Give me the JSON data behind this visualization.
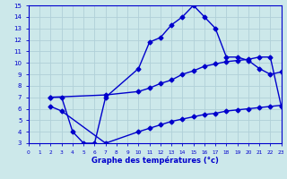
{
  "line1_x": [
    2,
    3,
    4,
    5,
    6,
    7,
    10,
    11,
    12,
    13,
    14,
    15,
    16,
    17,
    18,
    19,
    20,
    21,
    22,
    23
  ],
  "line1_y": [
    7.0,
    7.0,
    4.0,
    3.0,
    3.0,
    7.0,
    9.5,
    11.8,
    12.2,
    13.3,
    14.0,
    15.0,
    14.0,
    13.0,
    10.5,
    10.5,
    10.2,
    9.5,
    9.0,
    9.2
  ],
  "line2_x": [
    2,
    7,
    10,
    11,
    12,
    13,
    14,
    15,
    16,
    17,
    18,
    19,
    20,
    21,
    22,
    23
  ],
  "line2_y": [
    7.0,
    7.2,
    7.5,
    7.8,
    8.2,
    8.5,
    9.0,
    9.3,
    9.7,
    9.9,
    10.1,
    10.2,
    10.3,
    10.5,
    10.5,
    6.2
  ],
  "line3_x": [
    2,
    3,
    7,
    10,
    11,
    12,
    13,
    14,
    15,
    16,
    17,
    18,
    19,
    20,
    21,
    22,
    23
  ],
  "line3_y": [
    6.2,
    5.8,
    3.0,
    4.0,
    4.3,
    4.6,
    4.9,
    5.1,
    5.3,
    5.5,
    5.6,
    5.8,
    5.9,
    6.0,
    6.1,
    6.2,
    6.3
  ],
  "xlabel": "Graphe des températures (°c)",
  "xlim": [
    0,
    23
  ],
  "ylim": [
    3,
    15
  ],
  "xticks": [
    0,
    1,
    2,
    3,
    4,
    5,
    6,
    7,
    8,
    9,
    10,
    11,
    12,
    13,
    14,
    15,
    16,
    17,
    18,
    19,
    20,
    21,
    22,
    23
  ],
  "yticks": [
    3,
    4,
    5,
    6,
    7,
    8,
    9,
    10,
    11,
    12,
    13,
    14,
    15
  ],
  "line_color": "#0000cc",
  "bg_color": "#cce8ea",
  "grid_color": "#b0d0d8",
  "axis_color": "#0000cc",
  "label_color": "#0000cc",
  "marker": "D",
  "markersize": 2.5,
  "linewidth": 1.0
}
